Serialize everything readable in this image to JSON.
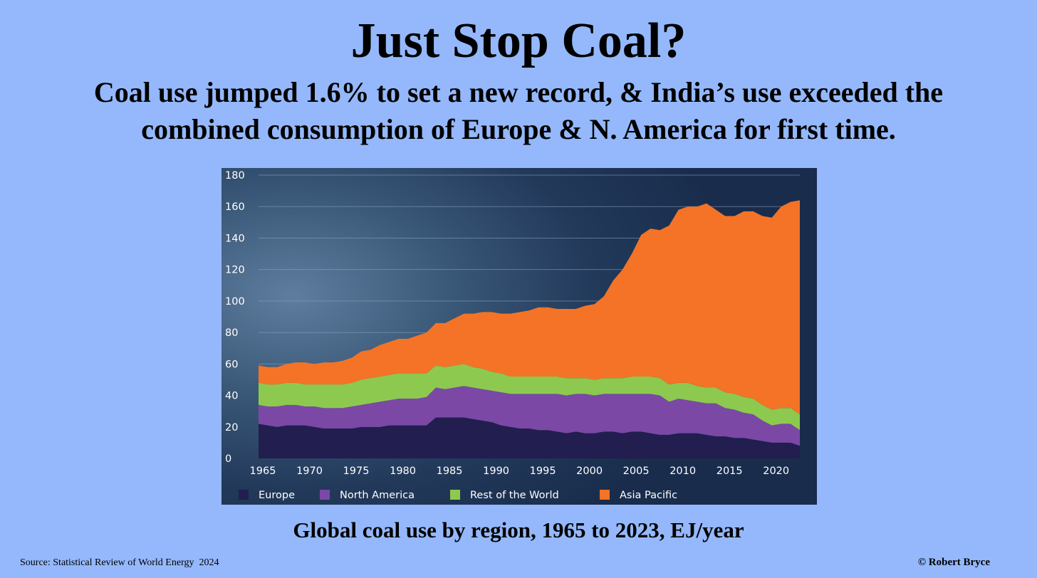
{
  "header": {
    "title": "Just Stop Coal?",
    "subtitle_line1": "Coal use jumped 1.6% to set a new record, & India’s use exceeded the",
    "subtitle_line2": "combined consumption of Europe & N. America for first time."
  },
  "caption": "Global coal use by region, 1965 to 2023, EJ/year",
  "footer": {
    "source": "Source: Statistical Review of World Energy  2024",
    "credit": "© Robert Bryce"
  },
  "chart_data": {
    "type": "area",
    "stacked": true,
    "x": [
      1965,
      1966,
      1967,
      1968,
      1969,
      1970,
      1971,
      1972,
      1973,
      1974,
      1975,
      1976,
      1977,
      1978,
      1979,
      1980,
      1981,
      1982,
      1983,
      1984,
      1985,
      1986,
      1987,
      1988,
      1989,
      1990,
      1991,
      1992,
      1993,
      1994,
      1995,
      1996,
      1997,
      1998,
      1999,
      2000,
      2001,
      2002,
      2003,
      2004,
      2005,
      2006,
      2007,
      2008,
      2009,
      2010,
      2011,
      2012,
      2013,
      2014,
      2015,
      2016,
      2017,
      2018,
      2019,
      2020,
      2021,
      2022,
      2023
    ],
    "x_ticks": [
      "1965",
      "1970",
      "1975",
      "1980",
      "1985",
      "1990",
      "1995",
      "2000",
      "2005",
      "2010",
      "2015",
      "2020"
    ],
    "y_ticks": [
      "0",
      "20",
      "40",
      "60",
      "80",
      "100",
      "120",
      "140",
      "160",
      "180"
    ],
    "ylim": [
      0,
      180
    ],
    "grid": "horizontal",
    "legend_position": "bottom",
    "series": [
      {
        "name": "Europe",
        "color": "#221e4f",
        "values": [
          22,
          21,
          20,
          21,
          21,
          21,
          20,
          19,
          19,
          19,
          19,
          20,
          20,
          20,
          21,
          21,
          21,
          21,
          21,
          26,
          26,
          26,
          26,
          25,
          24,
          23,
          21,
          20,
          19,
          19,
          18,
          18,
          17,
          16,
          17,
          16,
          16,
          17,
          17,
          16,
          17,
          17,
          16,
          15,
          15,
          16,
          16,
          16,
          15,
          14,
          14,
          13,
          13,
          12,
          11,
          10,
          10,
          10,
          8
        ]
      },
      {
        "name": "North America",
        "color": "#7b48a6",
        "values": [
          12,
          12,
          13,
          13,
          13,
          12,
          13,
          13,
          13,
          13,
          14,
          14,
          15,
          16,
          16,
          17,
          17,
          17,
          18,
          19,
          18,
          19,
          20,
          20,
          20,
          20,
          21,
          21,
          22,
          22,
          23,
          23,
          24,
          24,
          24,
          25,
          24,
          24,
          24,
          25,
          24,
          24,
          25,
          25,
          21,
          22,
          21,
          20,
          20,
          21,
          18,
          18,
          16,
          16,
          13,
          11,
          12,
          12,
          10
        ]
      },
      {
        "name": "Rest of the World",
        "color": "#8dc94f",
        "values": [
          14,
          14,
          14,
          14,
          14,
          14,
          14,
          15,
          15,
          15,
          15,
          16,
          16,
          16,
          16,
          16,
          16,
          16,
          15,
          14,
          14,
          14,
          14,
          13,
          13,
          12,
          12,
          11,
          11,
          11,
          11,
          11,
          11,
          11,
          10,
          10,
          10,
          10,
          10,
          10,
          11,
          11,
          11,
          11,
          11,
          10,
          11,
          10,
          10,
          10,
          10,
          10,
          10,
          10,
          10,
          10,
          10,
          10,
          10
        ]
      },
      {
        "name": "Asia Pacific",
        "color": "#f47326",
        "values": [
          11,
          11,
          11,
          12,
          13,
          14,
          13,
          14,
          14,
          15,
          16,
          18,
          18,
          20,
          21,
          22,
          22,
          24,
          26,
          27,
          28,
          30,
          32,
          34,
          36,
          38,
          38,
          40,
          41,
          42,
          44,
          44,
          43,
          44,
          44,
          46,
          48,
          52,
          62,
          69,
          78,
          90,
          94,
          94,
          101,
          110,
          112,
          114,
          117,
          113,
          112,
          113,
          118,
          119,
          120,
          122,
          128,
          131,
          136
        ]
      }
    ]
  }
}
